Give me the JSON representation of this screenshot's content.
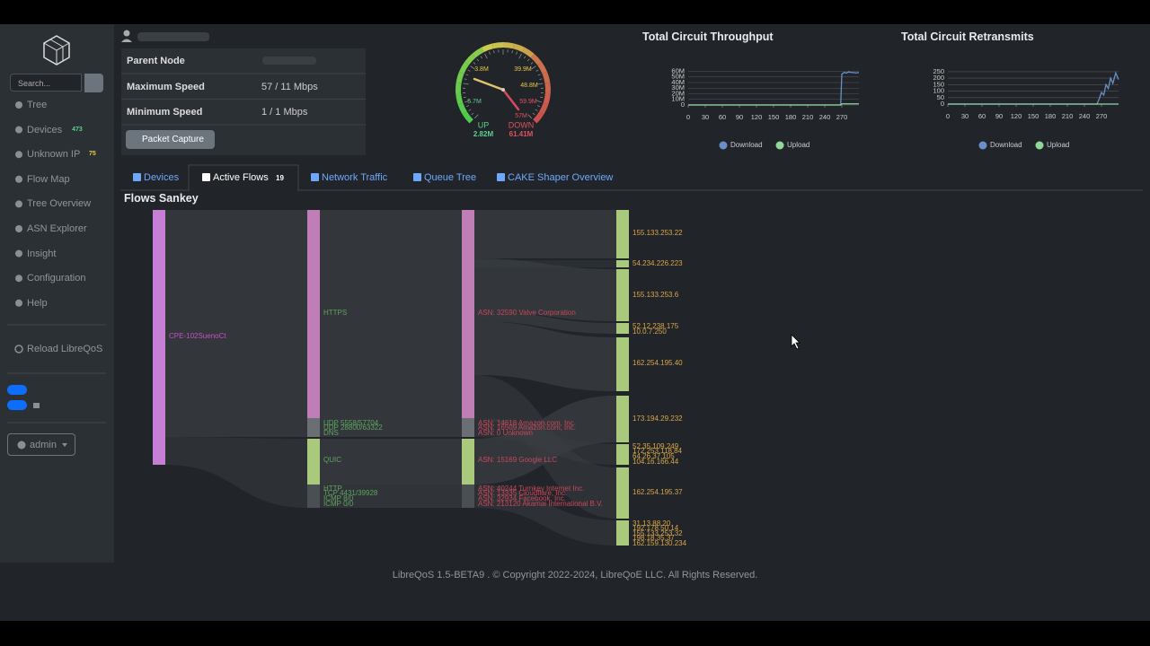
{
  "sidebar": {
    "search_placeholder": "Search...",
    "nav": [
      {
        "label": "Tree"
      },
      {
        "label": "Devices",
        "badge": 473
      },
      {
        "label": "Unknown IP",
        "badge": 75
      },
      {
        "label": "Flow Map"
      },
      {
        "label": "Tree Overview"
      },
      {
        "label": "ASN Explorer"
      },
      {
        "label": "Insight"
      },
      {
        "label": "Configuration"
      },
      {
        "label": "Help"
      }
    ],
    "reload": "Reload LibreQoS",
    "user": "admin"
  },
  "node_info": {
    "rows": [
      {
        "label": "Parent Node"
      },
      {
        "label": "Maximum Speed",
        "value": "57 / 11 Mbps"
      },
      {
        "label": "Minimum Speed",
        "value": "1 / 1 Mbps"
      }
    ],
    "button": "Packet Capture"
  },
  "gauge": {
    "scale_labels": [
      "3.8M",
      "5.7M",
      "39.9M",
      "48.8M",
      "59.9M",
      "57M"
    ],
    "up_label": "UP",
    "up_value": "2.82M",
    "down_label": "DOWN",
    "down_value": "61.41M"
  },
  "charts": [
    {
      "title": "Total Circuit Throughput",
      "xlim": [
        0,
        300
      ],
      "ylim": [
        0,
        64000000
      ],
      "xticks": [
        0,
        30,
        60,
        90,
        120,
        150,
        180,
        210,
        240,
        270
      ],
      "yticks": [
        0,
        {
          "value": 10000000,
          "label": "10M"
        },
        {
          "value": 20000000,
          "label": "20M"
        },
        {
          "value": 30000000,
          "label": "30M"
        },
        {
          "value": 40000000,
          "label": "40M"
        },
        {
          "value": 50000000,
          "label": "50M"
        },
        {
          "value": 60000000,
          "label": "60M"
        }
      ],
      "x": [
        0,
        60,
        120,
        180,
        240,
        268,
        270,
        274,
        278,
        282,
        286,
        290,
        295,
        300
      ],
      "series": [
        {
          "name": "Download",
          "color": "#6a8fc8",
          "values": [
            0,
            0,
            0,
            0,
            0,
            0,
            55000000,
            58000000,
            57000000,
            59000000,
            58000000,
            58000000,
            57000000,
            58000000
          ]
        },
        {
          "name": "Upload",
          "color": "#8fd89a",
          "values": [
            0,
            0,
            0,
            0,
            0,
            0,
            2000000,
            2000000,
            2000000,
            2000000,
            2000000,
            2000000,
            2000000,
            2000000
          ]
        }
      ]
    },
    {
      "title": "Total Circuit Retransmits",
      "xlim": [
        0,
        300
      ],
      "ylim": [
        0,
        270
      ],
      "xticks": [
        0,
        30,
        60,
        90,
        120,
        150,
        180,
        210,
        240,
        270
      ],
      "yticks": [
        0,
        50,
        100,
        150,
        200,
        250
      ],
      "x": [
        0,
        60,
        120,
        180,
        240,
        262,
        266,
        270,
        274,
        278,
        282,
        286,
        290,
        295,
        300
      ],
      "series": [
        {
          "name": "Download",
          "color": "#6a8fc8",
          "values": [
            0,
            0,
            0,
            0,
            0,
            0,
            40,
            90,
            70,
            150,
            120,
            200,
            160,
            240,
            190
          ]
        },
        {
          "name": "Upload",
          "color": "#8fd89a",
          "values": [
            0,
            0,
            0,
            0,
            0,
            0,
            0,
            0,
            0,
            0,
            0,
            0,
            0,
            0,
            0
          ]
        }
      ]
    }
  ],
  "tabs": [
    {
      "label": "Devices"
    },
    {
      "label": "Active Flows",
      "badge": 19
    },
    {
      "label": "Network Traffic"
    },
    {
      "label": "Queue Tree"
    },
    {
      "label": "CAKE Shaper Overview"
    }
  ],
  "sankey": {
    "title": "Flows Sankey",
    "source": "CPE-102SuenoCt",
    "protocols": [
      "HTTPS",
      "UDP 5558/57704",
      "UDP 28800/63322",
      "DNS",
      "QUIC",
      "HTTP",
      "TCP 4431/39928",
      "ICMP 8/0",
      "ICMP 0/0"
    ],
    "asns": [
      "ASN: 32590 Valve Corporation",
      "ASN: 14618 Amazon.com, Inc.",
      "ASN: 16509 Amazon.com, Inc.",
      "ASN: 0 Unknown",
      "ASN: 15169 Google LLC",
      "ASN: 40244 Turnkey Internet Inc.",
      "ASN: 13335 Cloudflare, Inc.",
      "ASN: 32934 Facebook, Inc.",
      "ASN: 213120 Akamai International B.V."
    ],
    "hosts": [
      "155.133.253.22",
      "54.234.226.223",
      "155.133.253.6",
      "52.12.238.175",
      "10.0.7.250",
      "162.254.195.40",
      "173.194.29.232",
      "52.35.109.249",
      "172.253.118.84",
      "64.26.37.105",
      "104.16.166.44",
      "162.254.195.37",
      "31.13.88.20",
      "192.178.50.14",
      "155.133.253.32",
      "198.18.35.37",
      "162.159.130.234"
    ]
  },
  "footer": "LibreQoS 1.5-BETA9 . © Copyright 2022-2024, LibreQoE LLC. All Rights Reserved."
}
